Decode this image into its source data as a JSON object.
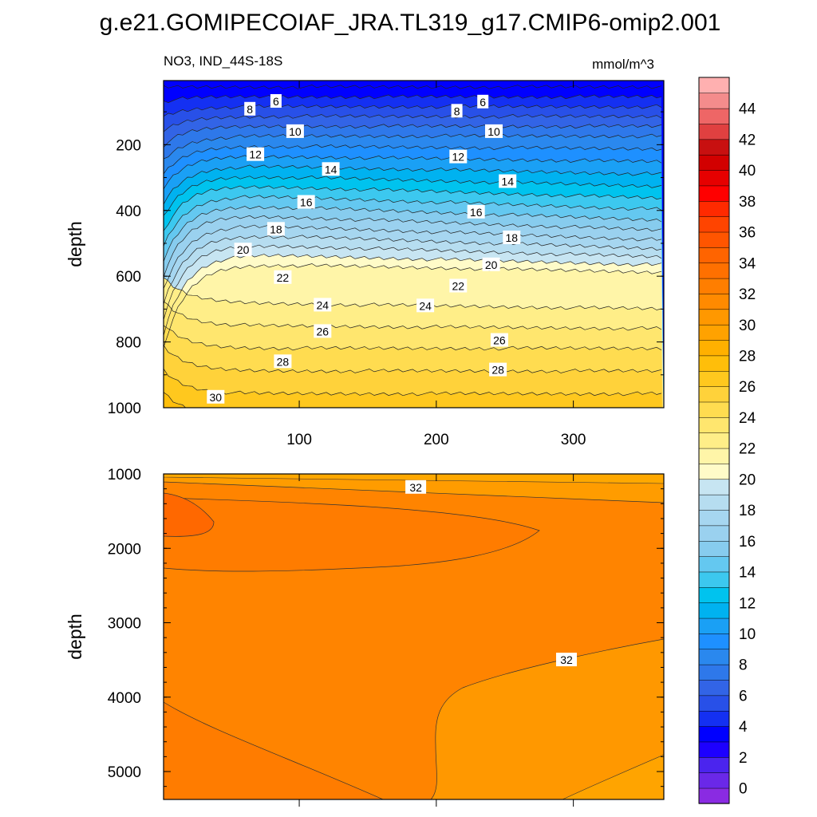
{
  "title": "g.e21.GOMIPECOIAF_JRA.TL319_g17.CMIP6-omip2.001",
  "chart_data": [
    {
      "type": "contour",
      "subtitle_left": "NO3, IND_44S-18S",
      "subtitle_right": "mmol/m^3",
      "xlabel": "",
      "ylabel": "depth",
      "xlim": [
        1,
        366
      ],
      "ylim": [
        1000,
        5
      ],
      "xticks": [
        100,
        200,
        300
      ],
      "yticks": [
        200,
        400,
        600,
        800,
        1000
      ],
      "contour_interval": 1,
      "contour_labels": [
        {
          "value": "6",
          "x": 83,
          "y": 68
        },
        {
          "value": "6",
          "x": 234,
          "y": 70
        },
        {
          "value": "8",
          "x": 64,
          "y": 92
        },
        {
          "value": "8",
          "x": 215,
          "y": 98
        },
        {
          "value": "10",
          "x": 97,
          "y": 160
        },
        {
          "value": "10",
          "x": 242,
          "y": 160
        },
        {
          "value": "12",
          "x": 68,
          "y": 230
        },
        {
          "value": "12",
          "x": 216,
          "y": 237
        },
        {
          "value": "14",
          "x": 123,
          "y": 275
        },
        {
          "value": "14",
          "x": 252,
          "y": 312
        },
        {
          "value": "16",
          "x": 105,
          "y": 375
        },
        {
          "value": "16",
          "x": 229,
          "y": 405
        },
        {
          "value": "18",
          "x": 83,
          "y": 457
        },
        {
          "value": "18",
          "x": 255,
          "y": 483
        },
        {
          "value": "20",
          "x": 59,
          "y": 520
        },
        {
          "value": "20",
          "x": 240,
          "y": 565
        },
        {
          "value": "22",
          "x": 88,
          "y": 604
        },
        {
          "value": "22",
          "x": 216,
          "y": 630
        },
        {
          "value": "24",
          "x": 117,
          "y": 688
        },
        {
          "value": "24",
          "x": 192,
          "y": 690
        },
        {
          "value": "26",
          "x": 117,
          "y": 768
        },
        {
          "value": "26",
          "x": 246,
          "y": 795
        },
        {
          "value": "28",
          "x": 88,
          "y": 860
        },
        {
          "value": "28",
          "x": 245,
          "y": 885
        },
        {
          "value": "30",
          "x": 39,
          "y": 968
        }
      ]
    },
    {
      "type": "contour",
      "xlabel": "",
      "ylabel": "depth",
      "xlim": [
        1,
        366
      ],
      "ylim": [
        5375,
        1000
      ],
      "yticks": [
        1000,
        2000,
        3000,
        4000,
        5000
      ],
      "contour_labels": [
        {
          "value": "32",
          "x": 185,
          "y": 1180
        },
        {
          "value": "32",
          "x": 295,
          "y": 3500
        }
      ]
    }
  ],
  "colorbar": {
    "labels": [
      "0",
      "2",
      "4",
      "6",
      "8",
      "10",
      "12",
      "14",
      "16",
      "18",
      "20",
      "22",
      "24",
      "26",
      "28",
      "30",
      "32",
      "34",
      "36",
      "38",
      "40",
      "42",
      "44"
    ],
    "colors": [
      "#8a2be2",
      "#6a28e8",
      "#4b24ee",
      "#1d00ff",
      "#0000ff",
      "#1430f2",
      "#2850e8",
      "#3264e6",
      "#2e78ea",
      "#2a88ee",
      "#1e90ff",
      "#1aa0f5",
      "#00b2f0",
      "#00c3ee",
      "#3cc8ef",
      "#64c8f0",
      "#87ccee",
      "#9ad1ef",
      "#a6d6f0",
      "#b6ddf0",
      "#c7e5f2",
      "#fffbc8",
      "#fff5a8",
      "#ffee88",
      "#ffe66e",
      "#ffdc50",
      "#ffd23a",
      "#ffc81e",
      "#ffbe0a",
      "#ffb000",
      "#ffa200",
      "#ff9800",
      "#ff8a00",
      "#ff7e00",
      "#ff7000",
      "#ff6400",
      "#ff5500",
      "#ff4400",
      "#ff2a00",
      "#ff0000",
      "#e60000",
      "#d20000",
      "#c81010",
      "#e04040",
      "#ee6666",
      "#f48c8c",
      "#ffb0b0"
    ]
  }
}
